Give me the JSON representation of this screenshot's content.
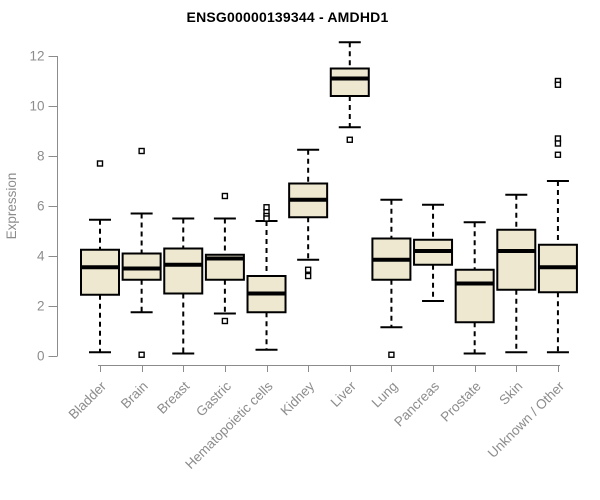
{
  "chart_data": {
    "type": "boxplot",
    "title": "ENSG00000139344 - AMDHD1",
    "xlabel": "",
    "ylabel": "Expression",
    "ylim": [
      0,
      12.9
    ],
    "yticks": [
      0,
      2,
      4,
      6,
      8,
      10,
      12
    ],
    "grid": false,
    "legend": "none",
    "categories": [
      "Bladder",
      "Brain",
      "Breast",
      "Gastric",
      "Hematopoietic cells",
      "Kidney",
      "Liver",
      "Lung",
      "Pancreas",
      "Prostate",
      "Skin",
      "Unknown / Other"
    ],
    "series": [
      {
        "name": "Bladder",
        "low": 0.15,
        "q1": 2.45,
        "median": 3.55,
        "q3": 4.25,
        "high": 5.45,
        "outliers": [
          7.7
        ]
      },
      {
        "name": "Brain",
        "low": 1.75,
        "q1": 3.05,
        "median": 3.5,
        "q3": 4.1,
        "high": 5.7,
        "outliers": [
          8.2,
          0.05
        ]
      },
      {
        "name": "Breast",
        "low": 0.1,
        "q1": 2.5,
        "median": 3.65,
        "q3": 4.3,
        "high": 5.5,
        "outliers": []
      },
      {
        "name": "Gastric",
        "low": 1.7,
        "q1": 3.05,
        "median": 3.9,
        "q3": 4.05,
        "high": 5.5,
        "outliers": [
          6.4,
          1.4
        ]
      },
      {
        "name": "Hematopoietic cells",
        "low": 0.25,
        "q1": 1.75,
        "median": 2.5,
        "q3": 3.2,
        "high": 5.4,
        "outliers": [
          5.95,
          5.75,
          5.6,
          5.5
        ]
      },
      {
        "name": "Kidney",
        "low": 3.85,
        "q1": 5.55,
        "median": 6.25,
        "q3": 6.9,
        "high": 8.25,
        "outliers": [
          3.45,
          3.2
        ]
      },
      {
        "name": "Liver",
        "low": 9.15,
        "q1": 10.4,
        "median": 11.1,
        "q3": 11.5,
        "high": 12.55,
        "outliers": [
          8.65
        ]
      },
      {
        "name": "Lung",
        "low": 1.15,
        "q1": 3.05,
        "median": 3.85,
        "q3": 4.7,
        "high": 6.25,
        "outliers": [
          0.05
        ]
      },
      {
        "name": "Pancreas",
        "low": 2.2,
        "q1": 3.65,
        "median": 4.2,
        "q3": 4.65,
        "high": 6.05,
        "outliers": []
      },
      {
        "name": "Prostate",
        "low": 0.1,
        "q1": 1.35,
        "median": 2.9,
        "q3": 3.45,
        "high": 5.35,
        "outliers": []
      },
      {
        "name": "Skin",
        "low": 0.15,
        "q1": 2.65,
        "median": 4.2,
        "q3": 5.05,
        "high": 6.45,
        "outliers": []
      },
      {
        "name": "Unknown / Other",
        "low": 0.15,
        "q1": 2.55,
        "median": 3.55,
        "q3": 4.45,
        "high": 7.0,
        "outliers": [
          11.0,
          10.85,
          8.7,
          8.5,
          8.05
        ]
      }
    ],
    "colors": {
      "box_fill": "#EDE8CF",
      "box_stroke": "#000000",
      "median": "#000000",
      "whisker": "#000000",
      "axis": "#8C8C8C",
      "tick_label": "#8C8C8C",
      "title": "#000000",
      "background": "#FFFFFF"
    }
  }
}
